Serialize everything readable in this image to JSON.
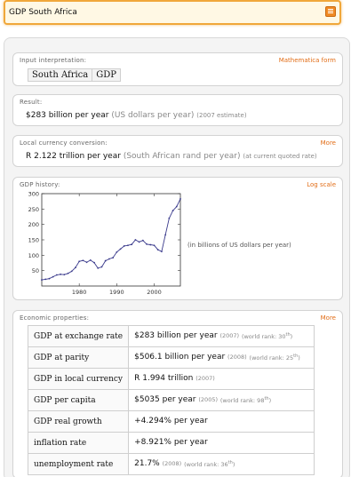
{
  "search": {
    "value": "GDP South Africa"
  },
  "pods": {
    "input": {
      "title": "Input interpretation:",
      "link": "Mathematica form",
      "tags": [
        "South Africa",
        "GDP"
      ]
    },
    "result": {
      "title": "Result:",
      "value": "$283 billion per year",
      "unit": "(US dollars per year)",
      "note": "(2007 estimate)"
    },
    "local": {
      "title": "Local currency conversion:",
      "link": "More",
      "value": "R 2.122 trillion per year",
      "unit": "(South African rand per year)",
      "note": "(at current quoted rate)"
    },
    "history": {
      "title": "GDP history:",
      "link": "Log scale",
      "note": "(in billions of US dollars per year)"
    },
    "economic": {
      "title": "Economic properties:",
      "link": "More",
      "rows": [
        {
          "label": "GDP at exchange rate",
          "value": "$283 billion per year",
          "year": "(2007)",
          "rank_prefix": "(world rank: 30",
          "rank_sup": "th",
          "rank_suffix": ")"
        },
        {
          "label": "GDP at parity",
          "value": "$506.1 billion per year",
          "year": "(2008)",
          "rank_prefix": "(world rank: 25",
          "rank_sup": "th",
          "rank_suffix": ")"
        },
        {
          "label": "GDP in local currency",
          "value": "R 1.994 trillion",
          "year": "(2007)",
          "rank_prefix": "",
          "rank_sup": "",
          "rank_suffix": ""
        },
        {
          "label": "GDP per capita",
          "value": "$5035 per year",
          "year": "(2005)",
          "rank_prefix": "(world rank: 98",
          "rank_sup": "th",
          "rank_suffix": ")"
        },
        {
          "label": "GDP real growth",
          "value": "+4.294% per year",
          "year": "",
          "rank_prefix": "",
          "rank_sup": "",
          "rank_suffix": ""
        },
        {
          "label": "inflation rate",
          "value": "+8.921% per year",
          "year": "",
          "rank_prefix": "",
          "rank_sup": "",
          "rank_suffix": ""
        },
        {
          "label": "unemployment rate",
          "value": "21.7%",
          "year": "(2008)",
          "rank_prefix": "(world rank: 36",
          "rank_sup": "th",
          "rank_suffix": ")"
        }
      ]
    }
  },
  "chart_data": {
    "type": "line",
    "title": "",
    "xlabel": "",
    "ylabel": "",
    "xlim": [
      1970,
      2007
    ],
    "ylim": [
      0,
      300
    ],
    "x_ticks": [
      1980,
      1990,
      2000
    ],
    "y_ticks": [
      50,
      100,
      150,
      200,
      250,
      300
    ],
    "series": [
      {
        "color": "#3a3a8c",
        "x": [
          1970,
          1971,
          1972,
          1973,
          1974,
          1975,
          1976,
          1977,
          1978,
          1979,
          1980,
          1981,
          1982,
          1983,
          1984,
          1985,
          1986,
          1987,
          1988,
          1989,
          1990,
          1991,
          1992,
          1993,
          1994,
          1995,
          1996,
          1997,
          1998,
          1999,
          2000,
          2001,
          2002,
          2003,
          2004,
          2005,
          2006,
          2007
        ],
        "y": [
          20,
          22,
          24,
          30,
          36,
          38,
          37,
          41,
          48,
          60,
          80,
          83,
          77,
          84,
          76,
          58,
          62,
          82,
          88,
          92,
          110,
          120,
          130,
          132,
          135,
          150,
          143,
          148,
          136,
          134,
          132,
          118,
          112,
          166,
          220,
          245,
          258,
          283
        ]
      }
    ]
  }
}
